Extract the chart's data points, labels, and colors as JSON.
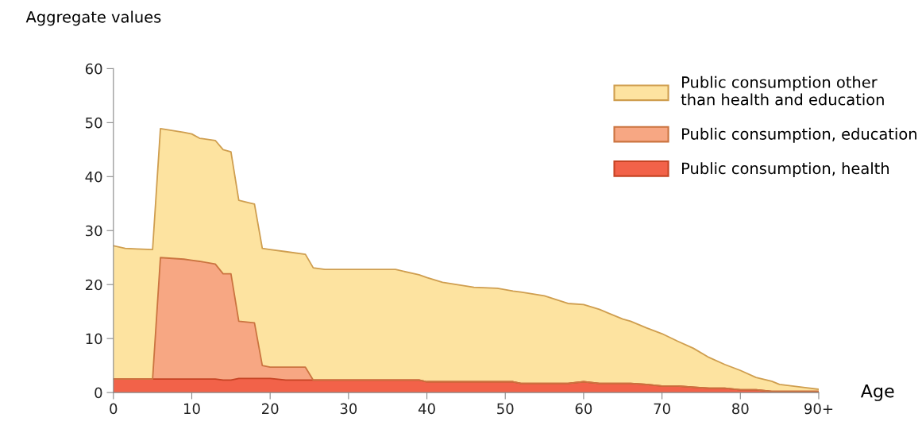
{
  "chart_data": {
    "type": "area",
    "stacked": true,
    "ylabel": "Aggregate values",
    "xlabel": "Age",
    "x": [
      0,
      1.5,
      3,
      5,
      6,
      9,
      10,
      11,
      13,
      14,
      15,
      16,
      18,
      19,
      20,
      22,
      24.5,
      25.5,
      27,
      36,
      39,
      40,
      42,
      46,
      49,
      51,
      52,
      55,
      58,
      60,
      62,
      65,
      66,
      68,
      70,
      72,
      74,
      76,
      78,
      80,
      82,
      84,
      85,
      90
    ],
    "xlim": [
      0,
      90
    ],
    "xticks": [
      0,
      10,
      20,
      30,
      40,
      50,
      60,
      70,
      80,
      {
        "value": 90,
        "label": "90+"
      }
    ],
    "ylim": [
      0,
      60
    ],
    "yticks": [
      0,
      10,
      20,
      30,
      40,
      50,
      60
    ],
    "grid": false,
    "legend": "top right",
    "series": [
      {
        "name": "Public consumption, health",
        "color": "#f26249",
        "values": [
          2.5,
          2.5,
          2.5,
          2.5,
          2.5,
          2.5,
          2.5,
          2.5,
          2.5,
          2.3,
          2.3,
          2.6,
          2.6,
          2.6,
          2.6,
          2.3,
          2.3,
          2.3,
          2.3,
          2.3,
          2.3,
          2.0,
          2.0,
          2.0,
          2.0,
          2.0,
          1.7,
          1.7,
          1.7,
          2.0,
          1.7,
          1.7,
          1.7,
          1.5,
          1.2,
          1.2,
          1.0,
          0.8,
          0.8,
          0.5,
          0.5,
          0.2,
          0.2,
          0.2
        ]
      },
      {
        "name": "Public consumption, education",
        "color": "#f7a783",
        "values": [
          0,
          0,
          0,
          0,
          22.5,
          22.2,
          22.0,
          21.8,
          21.3,
          19.7,
          19.7,
          10.6,
          10.3,
          2.4,
          2.1,
          2.4,
          2.4,
          0,
          0,
          0,
          0,
          0,
          0,
          0,
          0,
          0,
          0,
          0,
          0,
          0,
          0,
          0,
          0,
          0,
          0,
          0,
          0,
          0,
          0,
          0,
          0,
          0,
          0,
          0
        ]
      },
      {
        "name": "Public consumption other\nthan health and education",
        "color": "#fde3a0",
        "values": [
          24.7,
          24.2,
          24.1,
          24.0,
          23.9,
          23.5,
          23.4,
          22.8,
          22.9,
          23.0,
          22.6,
          22.4,
          22.0,
          21.7,
          21.8,
          21.4,
          20.9,
          20.8,
          20.5,
          20.5,
          19.5,
          19.3,
          18.4,
          17.5,
          17.3,
          16.8,
          16.9,
          16.2,
          14.8,
          14.3,
          13.7,
          11.9,
          11.5,
          10.5,
          9.7,
          8.3,
          7.2,
          5.7,
          4.4,
          3.6,
          2.3,
          1.9,
          1.3,
          0.4
        ]
      }
    ]
  }
}
